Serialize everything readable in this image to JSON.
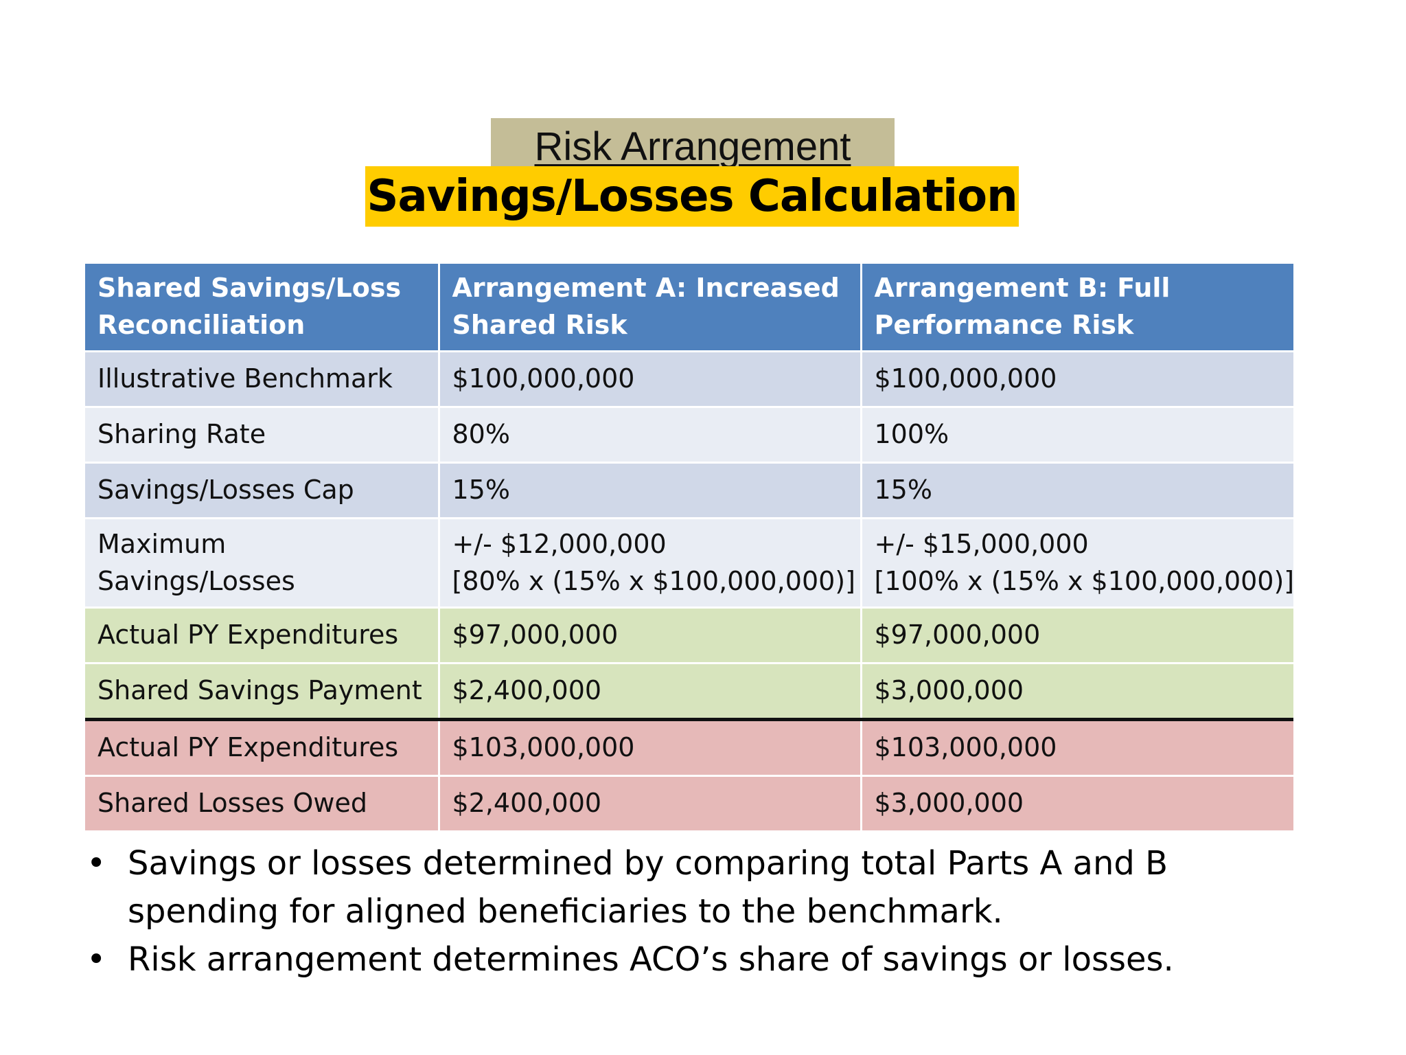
{
  "header": {
    "subtitle": "Risk Arrangement",
    "title": "Savings/Losses Calculation",
    "subtitle_bg": "#c4bd97",
    "title_bg": "#ffcc00"
  },
  "table": {
    "columns": [
      "Shared Savings/Loss Reconciliation",
      "Arrangement A: Increased Shared Risk",
      "Arrangement B: Full Performance Risk"
    ],
    "rows": {
      "benchmark": {
        "label": "Illustrative Benchmark",
        "a": "$100,000,000",
        "b": "$100,000,000"
      },
      "sharing_rate": {
        "label": "Sharing Rate",
        "a": "80%",
        "b": "100%"
      },
      "cap": {
        "label": "Savings/Losses Cap",
        "a": "15%",
        "b": "15%"
      },
      "max": {
        "label_line1": "Maximum",
        "label_line2": "Savings/Losses",
        "a_line1": "+/- $12,000,000",
        "a_line2": "[80% x (15% x $100,000,000)]",
        "b_line1": "+/- $15,000,000",
        "b_line2": "[100% x (15% x $100,000,000)]"
      },
      "savings_expenditures": {
        "label": "Actual PY Expenditures",
        "a": "$97,000,000",
        "b": "$97,000,000"
      },
      "savings_payment": {
        "label": "Shared Savings Payment",
        "a": "$2,400,000",
        "b": "$3,000,000"
      },
      "loss_expenditures": {
        "label": "Actual PY Expenditures",
        "a": "$103,000,000",
        "b": "$103,000,000"
      },
      "losses_owed": {
        "label": "Shared Losses Owed",
        "a": "$2,400,000",
        "b": "$3,000,000"
      }
    },
    "colors": {
      "header": "#4f81bd",
      "row_dark": "#d0d8e8",
      "row_light": "#e9edf4",
      "savings": "#d7e4bd",
      "losses": "#e6b9b8"
    }
  },
  "bullets": [
    {
      "glyph": "•",
      "line1": "Savings or losses determined by comparing total Parts A and B",
      "line2": "spending for aligned beneficiaries to the benchmark."
    },
    {
      "glyph": "•",
      "line1": "Risk arrangement determines ACO’s share of savings or losses."
    }
  ]
}
